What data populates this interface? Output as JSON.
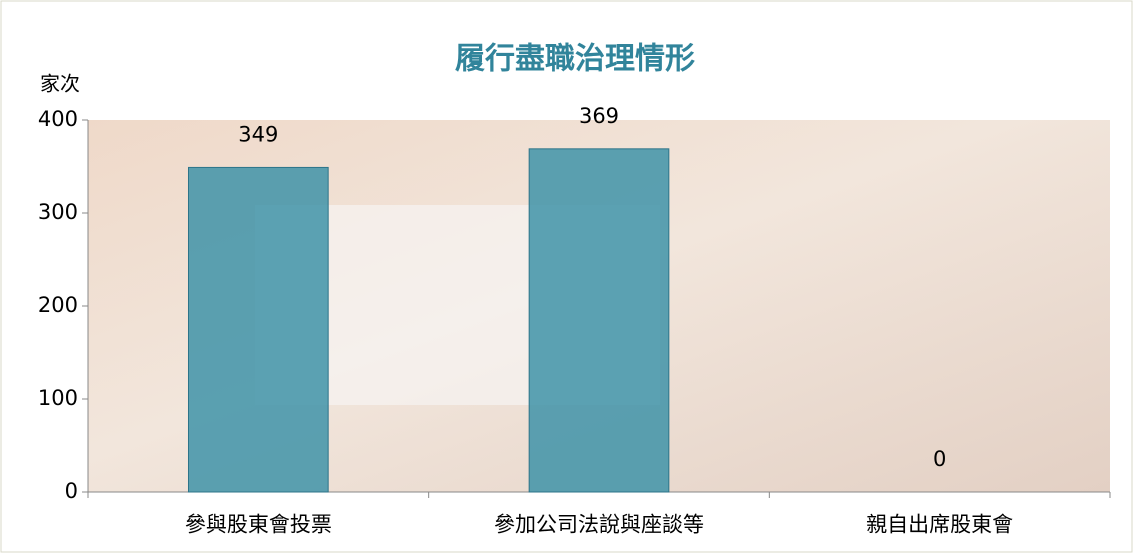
{
  "chart_data": {
    "type": "bar",
    "title": "履行盡職治理情形",
    "y_label": "家次",
    "categories": [
      "參與股東會投票",
      "參加公司法說與座談等",
      "親自出席股東會"
    ],
    "values": [
      349,
      369,
      0
    ],
    "color": "#3f93a8",
    "ylim": [
      0,
      400
    ],
    "yticks": [
      0,
      100,
      200,
      300,
      400
    ]
  }
}
